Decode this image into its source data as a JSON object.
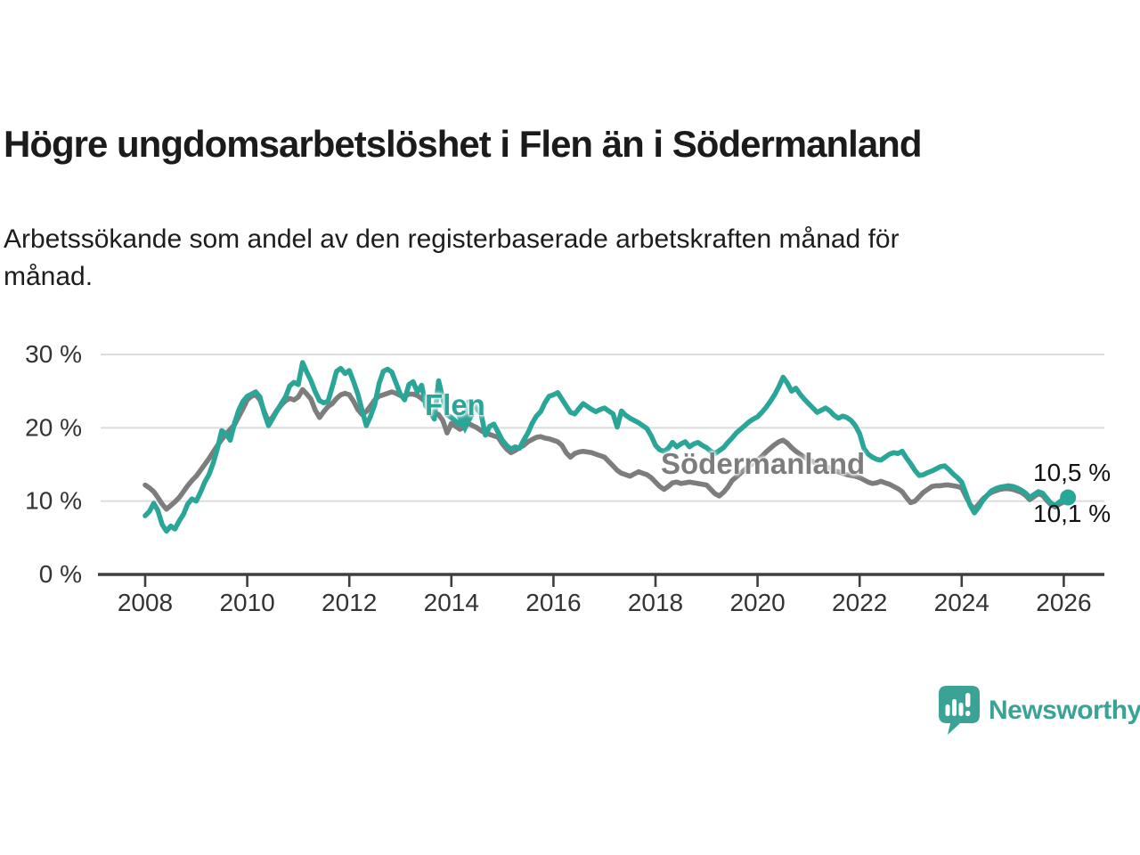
{
  "chart_data": {
    "type": "line",
    "title": "Högre ungdomsarbetslöshet i Flen än i Södermanland",
    "subtitle_lines": [
      "Arbetssökande som andel av den registerbaserade arbetskraften månad för",
      "månad."
    ],
    "x_unit": "year (monthly values)",
    "ylim": [
      0,
      30
    ],
    "xlim": [
      2007.1,
      2026.8
    ],
    "grid": "horizontal",
    "colors": {
      "flen": "#2aa699",
      "sodermanland": "#7d7d7d",
      "axis": "#3f3f3f",
      "gridline": "#dcdcdc",
      "tick_text": "#333333"
    },
    "y_ticks": [
      {
        "value": 30,
        "label": "30 %"
      },
      {
        "value": 20,
        "label": "20 %"
      },
      {
        "value": 10,
        "label": "10 %"
      },
      {
        "value": 0,
        "label": "0 %"
      }
    ],
    "x_ticks": [
      {
        "value": 2008,
        "label": "2008"
      },
      {
        "value": 2010,
        "label": "2010"
      },
      {
        "value": 2012,
        "label": "2012"
      },
      {
        "value": 2014,
        "label": "2014"
      },
      {
        "value": 2016,
        "label": "2016"
      },
      {
        "value": 2018,
        "label": "2018"
      },
      {
        "value": 2020,
        "label": "2020"
      },
      {
        "value": 2022,
        "label": "2022"
      },
      {
        "value": 2024,
        "label": "2024"
      },
      {
        "value": 2026,
        "label": "2026"
      }
    ],
    "series": [
      {
        "name": "Flen",
        "color": "#2aa699",
        "end_label": "10,5 %",
        "last_value": 10.5,
        "start_year": 2008,
        "points_per_year": 12,
        "values": [
          8.0,
          8.6,
          9.7,
          8.7,
          6.8,
          5.9,
          6.6,
          6.2,
          7.3,
          8.2,
          9.6,
          10.3,
          10.0,
          11.2,
          12.6,
          13.6,
          15.2,
          17.2,
          19.6,
          19.2,
          18.3,
          20.6,
          22.4,
          23.6,
          24.3,
          24.6,
          24.9,
          24.2,
          22.0,
          20.3,
          21.3,
          22.3,
          23.3,
          24.2,
          25.7,
          26.2,
          25.9,
          28.9,
          27.6,
          26.4,
          24.9,
          23.7,
          23.4,
          23.6,
          25.6,
          27.7,
          28.1,
          27.4,
          27.8,
          26.3,
          24.6,
          22.4,
          20.3,
          21.6,
          23.2,
          26.0,
          27.7,
          28.0,
          27.6,
          26.1,
          24.6,
          23.8,
          25.9,
          26.3,
          24.9,
          25.8,
          23.0,
          22.2,
          21.2,
          26.4,
          24.0,
          21.8,
          21.4,
          20.9,
          20.4,
          21.0,
          23.5,
          23.3,
          22.6,
          21.9,
          19.0,
          20.2,
          20.5,
          19.4,
          18.3,
          17.6,
          17.1,
          17.4,
          17.2,
          18.3,
          19.3,
          20.6,
          21.6,
          22.2,
          23.4,
          24.3,
          24.5,
          24.8,
          23.9,
          23.0,
          22.1,
          21.9,
          22.6,
          23.3,
          22.9,
          22.5,
          22.2,
          22.5,
          22.7,
          22.3,
          21.9,
          20.1,
          22.3,
          21.7,
          21.3,
          21.0,
          20.7,
          20.3,
          19.9,
          18.9,
          17.6,
          17.0,
          16.8,
          17.2,
          18.0,
          17.4,
          17.8,
          18.1,
          17.4,
          17.8,
          18.0,
          17.6,
          17.3,
          16.8,
          16.5,
          16.9,
          17.3,
          18.0,
          18.6,
          19.3,
          19.8,
          20.3,
          20.8,
          21.2,
          21.5,
          22.1,
          22.8,
          23.6,
          24.5,
          25.6,
          26.9,
          26.1,
          25.0,
          25.4,
          24.6,
          23.9,
          23.3,
          22.7,
          22.1,
          22.4,
          22.7,
          22.3,
          21.7,
          21.3,
          21.6,
          21.4,
          21.0,
          20.3,
          19.2,
          17.2,
          16.4,
          16.0,
          15.7,
          15.6,
          16.0,
          16.4,
          16.6,
          16.5,
          16.8,
          15.9,
          15.1,
          14.2,
          13.5,
          13.6,
          13.9,
          14.1,
          14.4,
          14.7,
          14.8,
          14.3,
          13.7,
          13.2,
          12.6,
          11.0,
          9.4,
          8.4,
          9.2,
          10.1,
          10.8,
          11.4,
          11.7,
          11.9,
          12.0,
          12.1,
          12.0,
          11.8,
          11.5,
          11.1,
          10.5,
          10.9,
          11.3,
          11.1,
          10.4,
          9.7,
          9.4,
          9.9,
          10.3,
          10.5
        ]
      },
      {
        "name": "Södermanland",
        "color": "#7d7d7d",
        "end_label": "10,1 %",
        "last_value": 10.1,
        "start_year": 2008,
        "points_per_year": 12,
        "values": [
          12.2,
          11.8,
          11.3,
          10.5,
          9.6,
          8.9,
          9.4,
          9.9,
          10.5,
          11.3,
          12.1,
          12.8,
          13.4,
          14.2,
          15.0,
          15.8,
          16.7,
          17.6,
          18.4,
          19.1,
          19.8,
          20.4,
          21.5,
          22.6,
          23.8,
          24.3,
          24.5,
          23.8,
          22.2,
          20.8,
          21.5,
          22.4,
          23.1,
          23.7,
          24.0,
          23.8,
          24.2,
          25.2,
          24.6,
          23.9,
          22.4,
          21.4,
          22.2,
          22.9,
          23.3,
          24.0,
          24.5,
          24.7,
          24.5,
          23.6,
          22.5,
          21.8,
          22.2,
          23.0,
          23.8,
          24.3,
          24.5,
          24.7,
          24.9,
          24.7,
          24.4,
          24.3,
          24.6,
          24.6,
          24.4,
          24.0,
          23.5,
          22.8,
          22.1,
          21.8,
          21.0,
          19.3,
          20.6,
          20.2,
          19.8,
          20.1,
          20.6,
          20.3,
          20.0,
          19.6,
          19.3,
          19.1,
          18.9,
          18.7,
          17.8,
          17.1,
          16.6,
          16.9,
          17.3,
          17.6,
          18.1,
          18.4,
          18.7,
          18.8,
          18.6,
          18.5,
          18.3,
          18.1,
          17.6,
          16.6,
          16.0,
          16.5,
          16.7,
          16.8,
          16.7,
          16.6,
          16.4,
          16.2,
          16.0,
          15.4,
          14.8,
          14.2,
          13.8,
          13.6,
          13.4,
          13.7,
          14.0,
          13.8,
          13.6,
          13.2,
          12.6,
          12.0,
          11.6,
          12.0,
          12.5,
          12.6,
          12.4,
          12.5,
          12.6,
          12.5,
          12.4,
          12.3,
          12.2,
          11.6,
          11.0,
          10.7,
          11.2,
          11.9,
          12.8,
          13.3,
          13.8,
          14.3,
          14.8,
          15.2,
          15.6,
          16.1,
          16.7,
          17.2,
          17.7,
          18.1,
          18.3,
          17.9,
          17.3,
          16.8,
          16.4,
          16.0,
          15.7,
          15.4,
          15.1,
          14.9,
          14.7,
          14.5,
          14.2,
          14.0,
          13.8,
          13.6,
          13.5,
          13.4,
          13.2,
          12.9,
          12.6,
          12.4,
          12.5,
          12.7,
          12.5,
          12.3,
          12.0,
          11.7,
          11.3,
          10.5,
          9.8,
          10.0,
          10.6,
          11.2,
          11.6,
          12.0,
          12.1,
          12.1,
          12.2,
          12.2,
          12.1,
          12.0,
          11.8,
          10.6,
          9.5,
          8.9,
          9.6,
          10.3,
          10.8,
          11.2,
          11.4,
          11.6,
          11.7,
          11.7,
          11.6,
          11.4,
          11.2,
          10.8,
          10.2,
          10.6,
          11.0,
          10.8,
          10.1,
          9.5,
          9.2,
          9.6,
          9.9,
          10.1
        ]
      }
    ]
  },
  "branding": {
    "wordmark": "Newsworthy",
    "color": "#3aa396"
  }
}
